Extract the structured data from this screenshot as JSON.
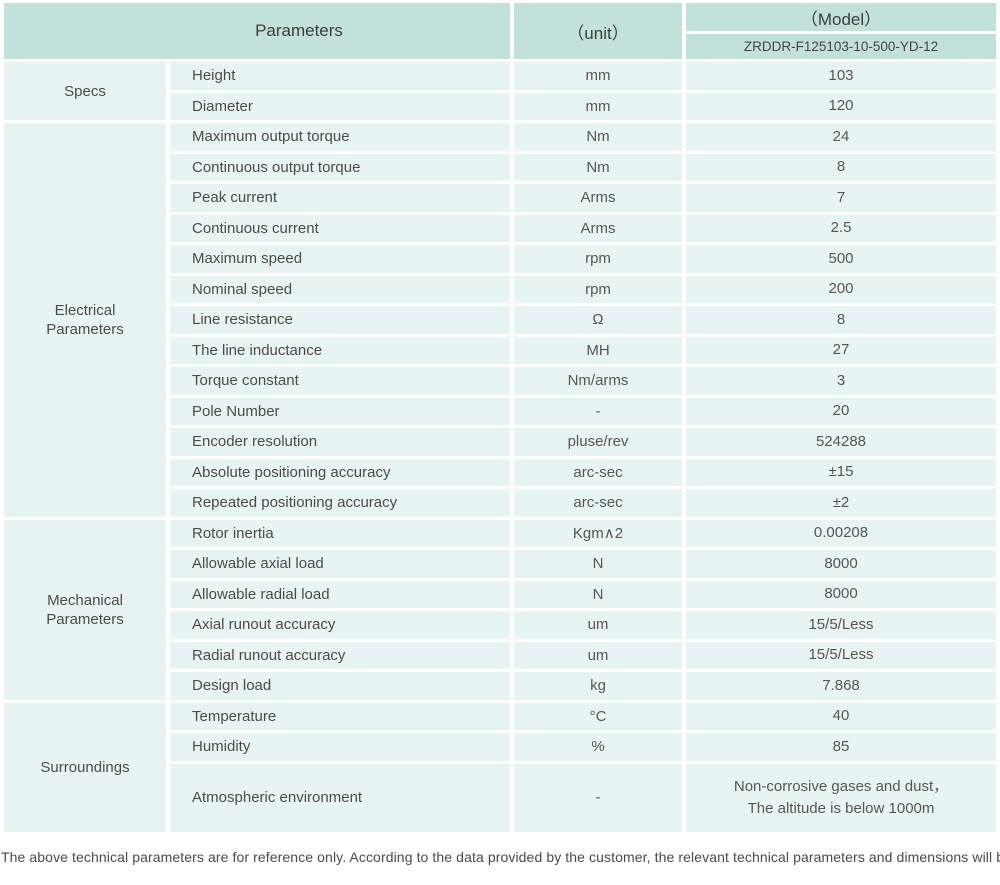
{
  "header": {
    "parameters_label": "Parameters",
    "unit_label": "（unit）",
    "model_label": "（Model）",
    "model_code": "ZRDDR-F125103-10-500-YD-12"
  },
  "colors": {
    "header_bg": "#c2e1d9",
    "cell_bg": "#e8f4f1",
    "text": "#4b4b4b"
  },
  "sections": [
    {
      "category": "Specs",
      "rows": [
        {
          "param": "Height",
          "unit": "mm",
          "value": "103"
        },
        {
          "param": "Diameter",
          "unit": "mm",
          "value": "120"
        }
      ]
    },
    {
      "category": "Electrical\nParameters",
      "rows": [
        {
          "param": "Maximum output torque",
          "unit": "Nm",
          "value": "24"
        },
        {
          "param": "Continuous output torque",
          "unit": "Nm",
          "value": "8"
        },
        {
          "param": "Peak current",
          "unit": "Arms",
          "value": "7"
        },
        {
          "param": "Continuous current",
          "unit": "Arms",
          "value": "2.5"
        },
        {
          "param": "Maximum speed",
          "unit": "rpm",
          "value": "500"
        },
        {
          "param": "Nominal speed",
          "unit": "rpm",
          "value": "200"
        },
        {
          "param": "Line resistance",
          "unit": "Ω",
          "value": "8"
        },
        {
          "param": "The line inductance",
          "unit": "MH",
          "value": "27"
        },
        {
          "param": "Torque constant",
          "unit": "Nm/arms",
          "value": "3"
        },
        {
          "param": "Pole Number",
          "unit": "-",
          "value": "20"
        },
        {
          "param": "Encoder resolution",
          "unit": "pluse/rev",
          "value": "524288"
        },
        {
          "param": "Absolute positioning accuracy",
          "unit": "arc-sec",
          "value": "±15"
        },
        {
          "param": "Repeated positioning accuracy",
          "unit": "arc-sec",
          "value": "±2"
        }
      ]
    },
    {
      "category": "Mechanical\nParameters",
      "rows": [
        {
          "param": "Rotor inertia",
          "unit": "Kgm∧2",
          "value": "0.00208"
        },
        {
          "param": "Allowable axial load",
          "unit": "N",
          "value": "8000"
        },
        {
          "param": "Allowable radial load",
          "unit": "N",
          "value": "8000"
        },
        {
          "param": "Axial runout accuracy",
          "unit": "um",
          "value": "15/5/Less"
        },
        {
          "param": "Radial runout accuracy",
          "unit": "um",
          "value": "15/5/Less"
        },
        {
          "param": "Design load",
          "unit": "kg",
          "value": "7.868"
        }
      ]
    },
    {
      "category": "Surroundings",
      "rows": [
        {
          "param": "Temperature",
          "unit": "°C",
          "value": "40"
        },
        {
          "param": "Humidity",
          "unit": "%",
          "value": "85"
        },
        {
          "param": "Atmospheric environment",
          "unit": "-",
          "value": "Non-corrosive gases and dust，\nThe altitude is below 1000m"
        }
      ]
    }
  ],
  "footer": {
    "note": "The above technical parameters are for reference only. According to the data provided by the customer, the relevant technical parameters and dimensions will be issued."
  }
}
